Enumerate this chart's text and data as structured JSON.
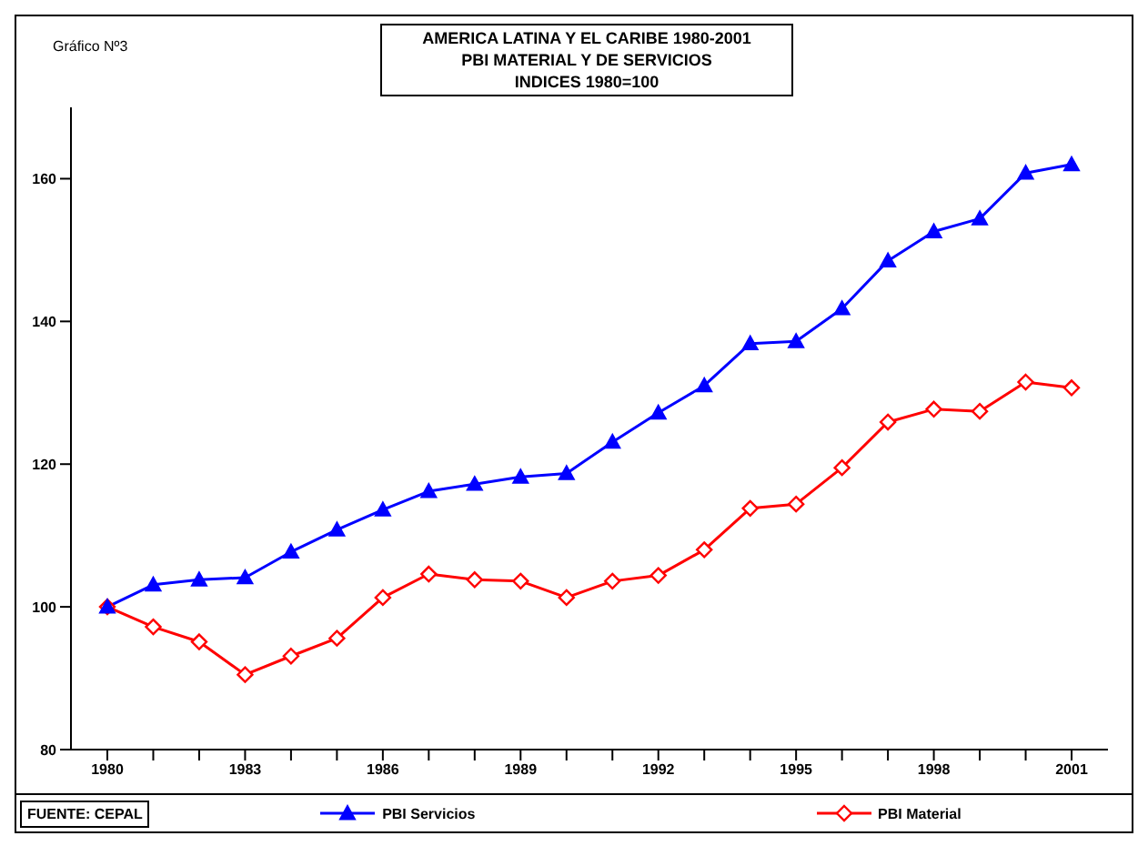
{
  "chart_data": {
    "type": "line",
    "title": "AMERICA LATINA Y EL CARIBE 1980-2001\nPBI MATERIAL Y DE SERVICIOS\nINDICES 1980=100",
    "subtitle": "Gráfico Nº3",
    "categories": [
      "1980",
      null,
      null,
      "1983",
      null,
      null,
      "1986",
      null,
      null,
      "1989",
      null,
      null,
      "1992",
      null,
      null,
      "1995",
      null,
      null,
      "1998",
      null,
      null,
      "2001"
    ],
    "series": [
      {
        "name": "PBI Servicios",
        "color": "#0000ff",
        "marker": "triangle",
        "values": [
          100,
          103.1,
          103.8,
          104.1,
          107.7,
          110.8,
          113.6,
          116.2,
          117.2,
          118.2,
          118.7,
          123.1,
          127.2,
          131,
          136.9,
          137.2,
          141.8,
          148.5,
          152.6,
          154.4,
          160.8,
          162
        ]
      },
      {
        "name": "PBI Material",
        "color": "#ff0000",
        "marker": "diamond",
        "values": [
          100,
          97.2,
          95.1,
          90.5,
          93.1,
          95.6,
          101.3,
          104.6,
          103.8,
          103.6,
          101.3,
          103.6,
          104.4,
          108,
          113.8,
          114.4,
          119.5,
          125.9,
          127.7,
          127.4,
          131.5,
          130.7
        ]
      }
    ],
    "ylim": [
      80,
      170
    ],
    "yticks": [
      80,
      100,
      120,
      140,
      160
    ],
    "grid": false,
    "legend": "bottom",
    "annotations": [
      "FUENTE: CEPAL"
    ]
  }
}
